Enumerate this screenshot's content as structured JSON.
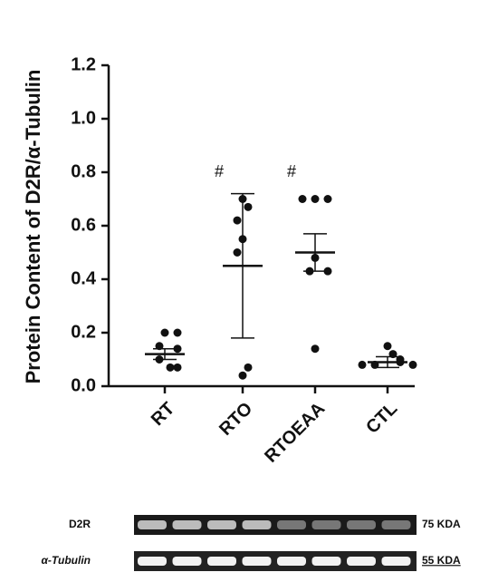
{
  "chart_data": {
    "type": "dot",
    "ylabel": "Protein Content of D2R/α-Tubulin",
    "categories": [
      "RT",
      "RTO",
      "RTOEAA",
      "CTL"
    ],
    "points": [
      [
        0.2,
        0.2,
        0.15,
        0.14,
        0.1,
        0.07,
        0.07
      ],
      [
        0.7,
        0.67,
        0.62,
        0.55,
        0.5,
        0.07,
        0.04
      ],
      [
        0.7,
        0.7,
        0.7,
        0.48,
        0.43,
        0.43,
        0.14
      ],
      [
        0.15,
        0.12,
        0.1,
        0.09,
        0.08,
        0.08,
        0.08
      ]
    ],
    "means": [
      0.12,
      0.45,
      0.5,
      0.09
    ],
    "errors": [
      0.02,
      0.27,
      0.07,
      0.02
    ],
    "annotations": [
      null,
      "#",
      "#",
      null
    ],
    "color": "#111111",
    "ylim": [
      0,
      1.2
    ],
    "yticks": [
      {
        "value": 0,
        "label": "0.0"
      },
      0.2,
      0.4,
      0.6,
      0.8,
      {
        "value": 1,
        "label": "1.0"
      },
      1.2
    ]
  },
  "blots": [
    {
      "label": "D2R",
      "size": "75 KDA"
    },
    {
      "label": "α-Tubulin",
      "size": "55 KDA"
    }
  ]
}
